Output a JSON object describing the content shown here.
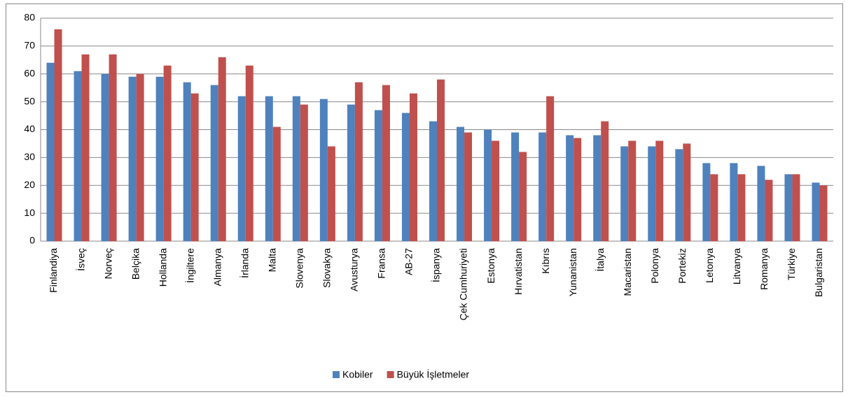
{
  "chart_data": {
    "type": "bar",
    "categories": [
      "Finlandiya",
      "İsveç",
      "Norveç",
      "Belçika",
      "Hollanda",
      "İngiltere",
      "Almanya",
      "İrlanda",
      "Malta",
      "Slovenya",
      "Slovakya",
      "Avusturya",
      "Fransa",
      "AB-27",
      "İspanya",
      "Çek Cumhuriyeti",
      "Estonya",
      "Hırvatistan",
      "Kıbrıs",
      "Yunanistan",
      "İtalya",
      "Macaristan",
      "Polonya",
      "Portekiz",
      "Letonya",
      "Litvanya",
      "Romanya",
      "Türkiye",
      "Bulgaristan"
    ],
    "series": [
      {
        "name": "Kobiler",
        "color": "#4f81bd",
        "values": [
          64,
          61,
          60,
          59,
          59,
          57,
          56,
          52,
          52,
          52,
          51,
          49,
          47,
          46,
          43,
          41,
          40,
          39,
          39,
          38,
          38,
          34,
          34,
          33,
          28,
          28,
          27,
          24,
          21
        ]
      },
      {
        "name": "Büyük İşletmeler",
        "color": "#c0504d",
        "values": [
          76,
          67,
          67,
          60,
          63,
          53,
          66,
          63,
          41,
          49,
          34,
          57,
          56,
          53,
          58,
          39,
          36,
          32,
          52,
          37,
          43,
          36,
          36,
          35,
          24,
          24,
          22,
          24,
          20
        ]
      }
    ],
    "ylim": [
      0,
      80
    ],
    "yticks": [
      0,
      10,
      20,
      30,
      40,
      50,
      60,
      70,
      80
    ],
    "grid": true,
    "legend": "bottom"
  }
}
